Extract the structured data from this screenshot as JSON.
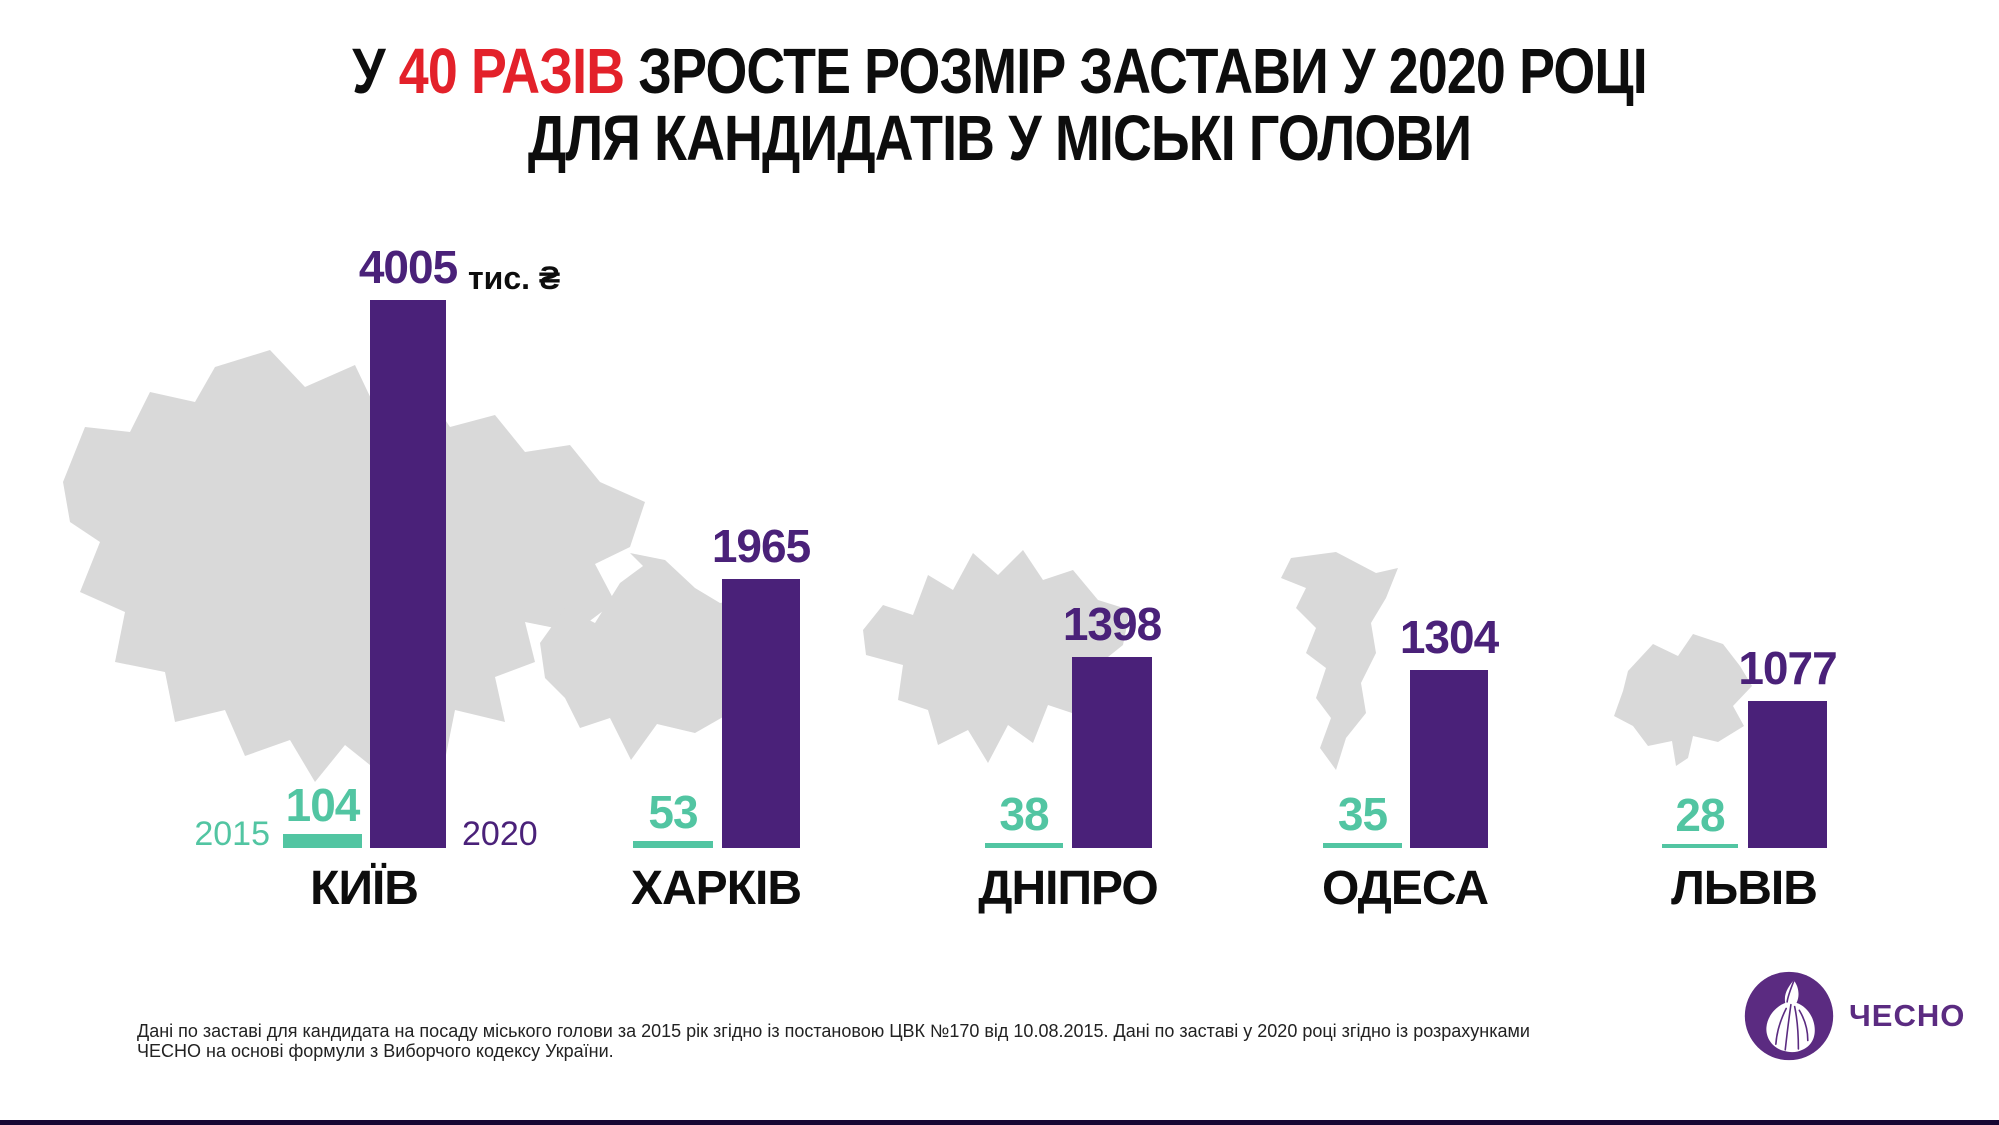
{
  "title": {
    "line1_prefix": "У ",
    "line1_highlight": "40 РАЗІВ",
    "line1_suffix": " ЗРОСТЕ РОЗМІР ЗАСТАВИ У 2020 РОЦІ",
    "line2": "ДЛЯ КАНДИДАТІВ У МІСЬКІ ГОЛОВИ"
  },
  "unit_label": "тис. ₴",
  "year_labels": {
    "y2015": "2015",
    "y2020": "2020"
  },
  "footer": {
    "line1": "Дані по заставі для кандидата на посаду міського голови за 2015 рік згідно із постановою ЦВК №170 від 10.08.2015. Дані по заставі у 2020 році згідно із розрахунками",
    "line2": "ЧЕСНО на основі формули з Виборчого кодексу України."
  },
  "logo": {
    "text": "ЧЕСНО"
  },
  "colors": {
    "purple_2020": "#4a2179",
    "teal_2015": "#52c5a2",
    "highlight_red": "#e3212a",
    "map_gray": "#d9d9d9",
    "logo_purple": "#5b2b81",
    "bottom_strip": "#160733"
  },
  "chart_data": {
    "type": "bar",
    "title": "У 40 РАЗІВ ЗРОСТЕ РОЗМІР ЗАСТАВИ У 2020 РОЦІ ДЛЯ КАНДИДАТІВ У МІСЬКІ ГОЛОВИ",
    "unit": "тис. ₴",
    "categories": [
      "КИЇВ",
      "ХАРКІВ",
      "ДНІПРО",
      "ОДЕСА",
      "ЛЬВІВ"
    ],
    "series": [
      {
        "name": "2015",
        "color": "#52c5a2",
        "values": [
          104,
          53,
          38,
          35,
          28
        ]
      },
      {
        "name": "2020",
        "color": "#4a2179",
        "values": [
          4005,
          1965,
          1398,
          1304,
          1077
        ]
      }
    ],
    "ylim": [
      0,
      4005
    ],
    "grid": false,
    "legend_position": "inline-beside-first-group",
    "value_labels": "above-bars"
  }
}
